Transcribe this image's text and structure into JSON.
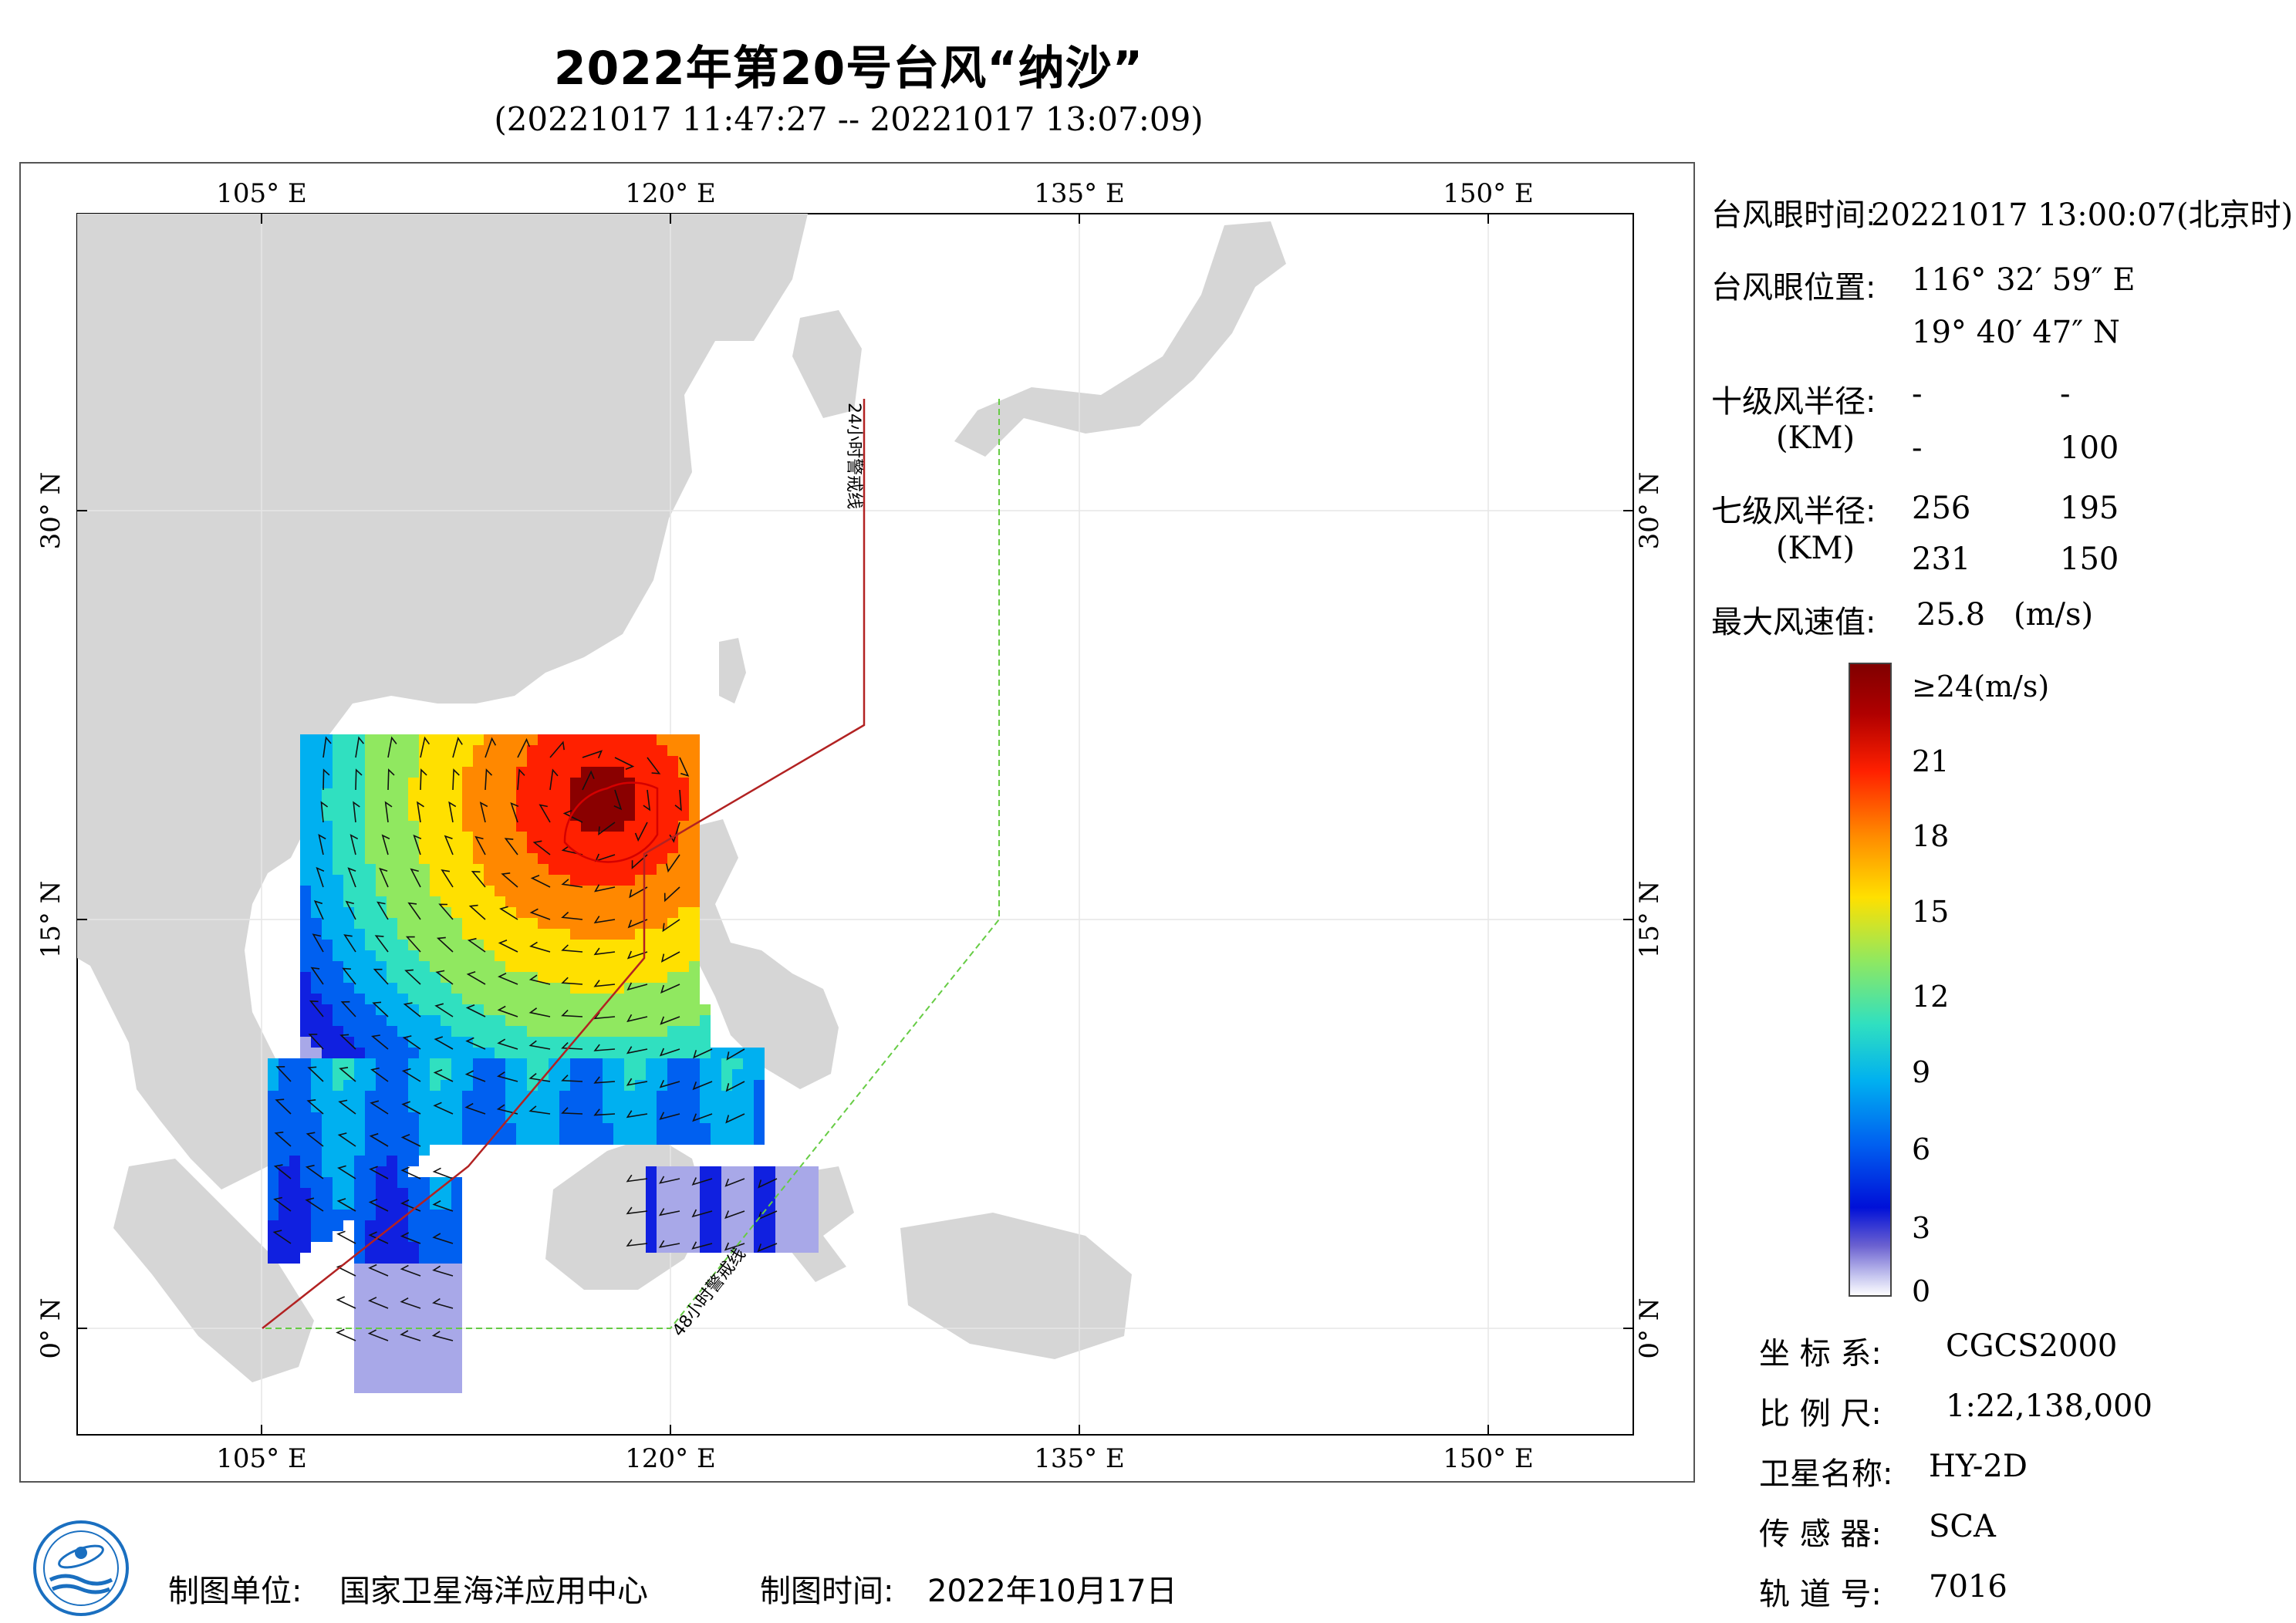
{
  "title": "2022年第20号台风“纳沙”",
  "subtitle": "(20221017 11:47:27 -- 20221017 13:07:09)",
  "map": {
    "lon_ticks": [
      "105° E",
      "120° E",
      "135° E",
      "150° E"
    ],
    "lat_ticks": [
      "30° N",
      "15° N",
      "0° N"
    ],
    "line_labels": [
      "24小时警戒线",
      "48小时警戒线"
    ]
  },
  "info": {
    "eye_time_label": "台风眼时间:",
    "eye_time_value": "20221017 13:00:07(北京时)",
    "eye_pos_label": "台风眼位置:",
    "eye_lon": "116° 32′ 59″ E",
    "eye_lat": "19° 40′ 47″ N",
    "r10_label": "十级风半径:",
    "r10_unit": "(KM)",
    "r10_values": [
      "-",
      "-",
      "-",
      "100"
    ],
    "r7_label": "七级风半径:",
    "r7_unit": "(KM)",
    "r7_values": [
      "256",
      "195",
      "231",
      "150"
    ],
    "max_wind_label": "最大风速值:",
    "max_wind_value": "25.8",
    "max_wind_unit": "(m/s)"
  },
  "colorbar": {
    "labels": [
      "≥24(m/s)",
      "21",
      "18",
      "15",
      "12",
      "9",
      "6",
      "3",
      "0"
    ],
    "colors": [
      "#7f0000",
      "#d40000",
      "#ff3000",
      "#ff8a00",
      "#ffd200",
      "#b4f050",
      "#40e0a0",
      "#00c8e6",
      "#0080f0",
      "#0020e0",
      "#3020c0",
      "#a8a8e8",
      "#ffffff"
    ]
  },
  "meta": {
    "crs_label": "坐 标 系:",
    "crs_value": "CGCS2000",
    "scale_label": "比 例 尺:",
    "scale_value": "1:22,138,000",
    "sat_label": "卫星名称:",
    "sat_value": "HY-2D",
    "sensor_label": "传 感 器:",
    "sensor_value": "SCA",
    "orbit_label": "轨 道 号:",
    "orbit_value": "7016"
  },
  "footer": {
    "producer_label": "制图单位:",
    "producer_value": "国家卫星海洋应用中心",
    "date_label": "制图时间:",
    "date_value": "2022年10月17日"
  }
}
